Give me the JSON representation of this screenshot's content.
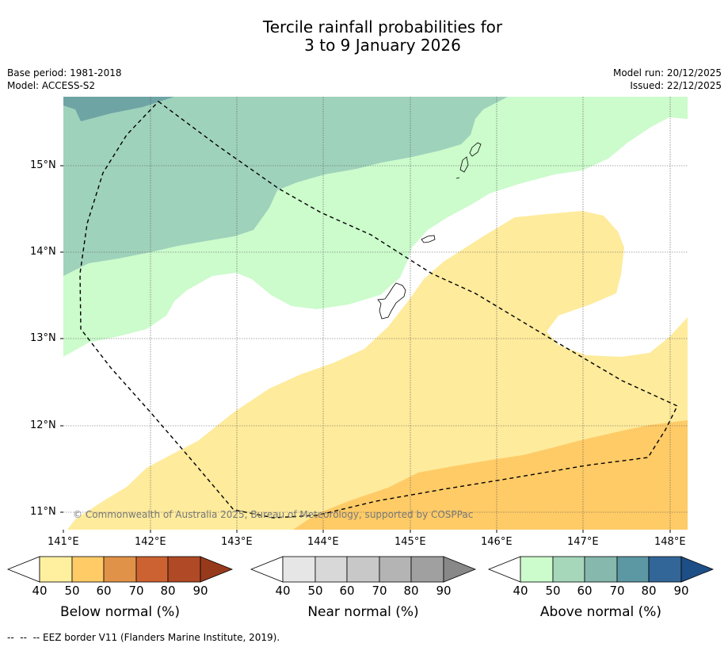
{
  "title": {
    "line1": "Tercile rainfall probabilities for",
    "line2": "3 to 9 January 2026"
  },
  "header": {
    "base_period": "Base period: 1981-2018",
    "model": "Model: ACCESS-S2",
    "model_run": "Model run: 20/12/2025",
    "issued": "Issued: 22/12/2025"
  },
  "map": {
    "lat_labels": [
      "15°N",
      "14°N",
      "13°N",
      "12°N",
      "11°N"
    ],
    "lon_labels": [
      "141°E",
      "142°E",
      "143°E",
      "144°E",
      "145°E",
      "146°E",
      "147°E",
      "148°E"
    ],
    "copyright": "© Commonwealth of Australia 2025, Bureau of Meteorology, supported by COSPPac",
    "region_classes": [
      {
        "category": "above",
        "range": "60-70",
        "color": "#6ea4a4"
      },
      {
        "category": "above",
        "range": "50-60",
        "color": "#9fd2bb"
      },
      {
        "category": "above",
        "range": "40-50",
        "color": "#ccfbcc"
      },
      {
        "category": "below",
        "range": "40-50",
        "color": "#feeb9c"
      },
      {
        "category": "below",
        "range": "50-60",
        "color": "#fecb67"
      }
    ]
  },
  "colorbars": [
    {
      "label": "Below normal (%)",
      "ticks": [
        "40",
        "50",
        "60",
        "70",
        "80",
        "90"
      ],
      "colors": [
        "#ffffff",
        "#fff0a0",
        "#fecb67",
        "#e09348",
        "#cc6232",
        "#b04a26",
        "#973a1c"
      ]
    },
    {
      "label": "Near normal (%)",
      "ticks": [
        "40",
        "50",
        "60",
        "70",
        "80",
        "90"
      ],
      "colors": [
        "#ffffff",
        "#e6e6e6",
        "#d8d8d8",
        "#c8c8c8",
        "#b4b4b4",
        "#a0a0a0",
        "#888888"
      ]
    },
    {
      "label": "Above normal (%)",
      "ticks": [
        "40",
        "50",
        "60",
        "70",
        "80",
        "90"
      ],
      "colors": [
        "#ffffff",
        "#ccfbcc",
        "#a6d7bb",
        "#86b8ad",
        "#5c98a3",
        "#336698",
        "#1e4e86"
      ]
    }
  ],
  "footer": {
    "eez_note": "--  --  -- EEZ border V11 (Flanders Marine Institute, 2019)."
  }
}
